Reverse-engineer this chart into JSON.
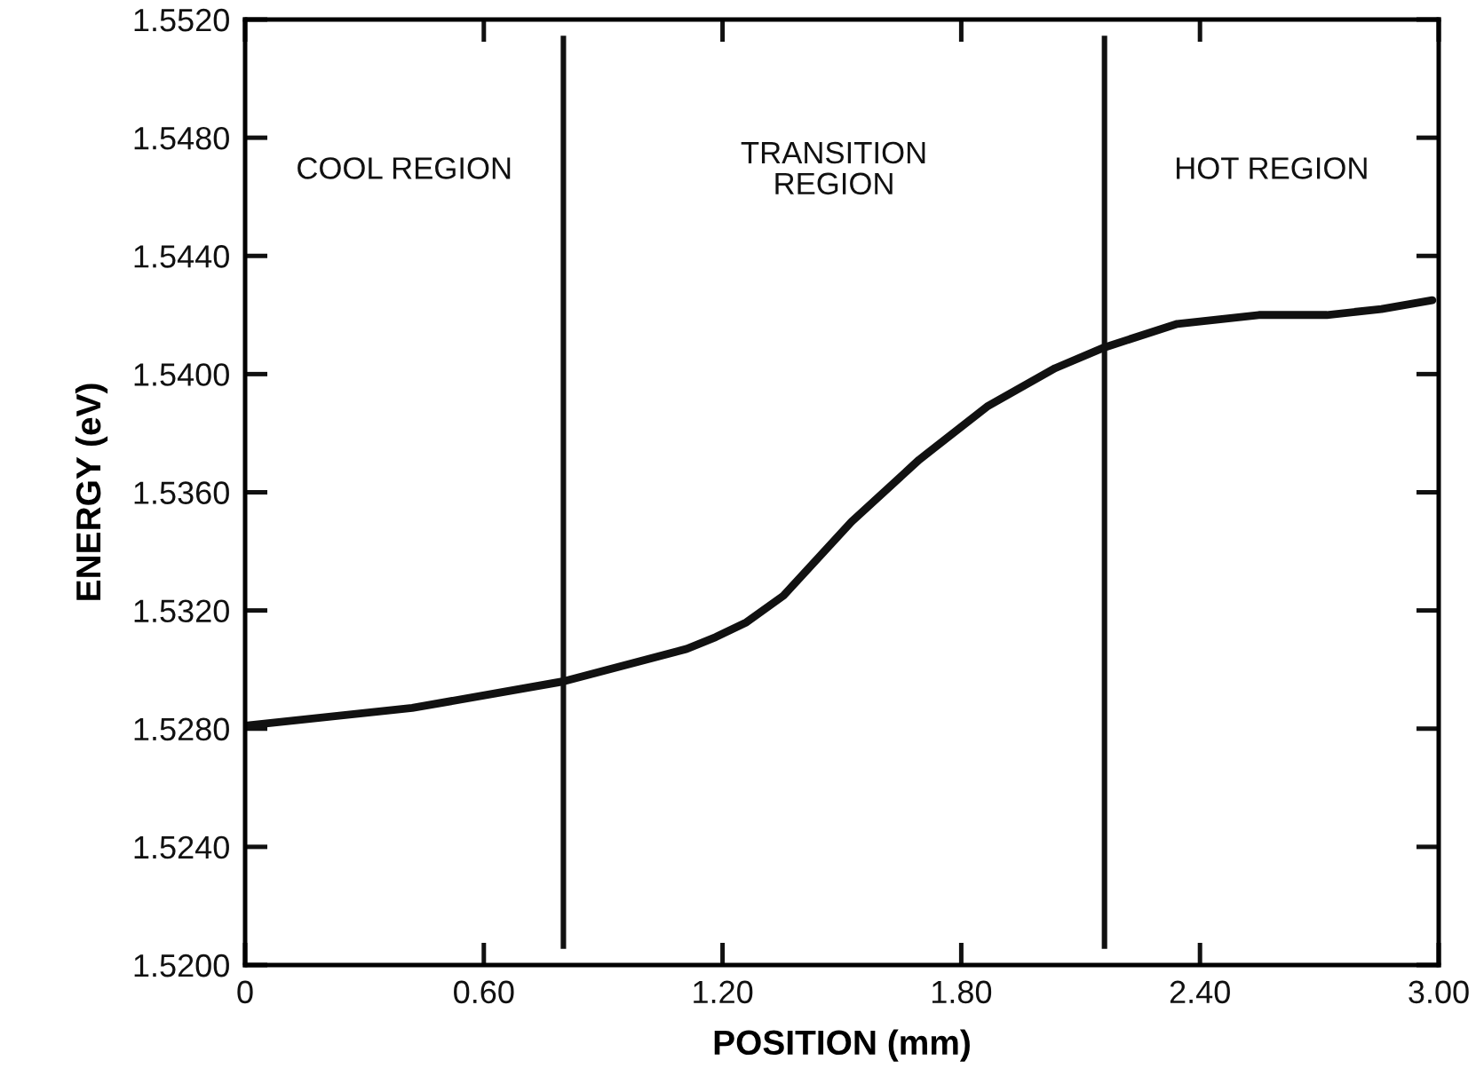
{
  "chart_data": {
    "type": "line",
    "xlabel": "POSITION (mm)",
    "ylabel": "ENERGY (eV)",
    "x": [
      0,
      0.42,
      0.8,
      1.11,
      1.183,
      1.26,
      1.353,
      1.524,
      1.694,
      1.865,
      2.036,
      2.159,
      2.343,
      2.548,
      2.719,
      2.856,
      2.984
    ],
    "series": [
      {
        "color": "#111111",
        "values": [
          1.5281,
          1.5287,
          1.5296,
          1.5307,
          1.5311,
          1.5316,
          1.5325,
          1.535,
          1.5371,
          1.5389,
          1.5402,
          1.5409,
          1.5417,
          1.542,
          1.542,
          1.5422,
          1.5425
        ]
      }
    ],
    "xlim": [
      0,
      3.0
    ],
    "xticks": [
      0,
      {
        "value": 0.6,
        "label": "0.60"
      },
      {
        "value": 1.2,
        "label": "1.20"
      },
      {
        "value": 1.8,
        "label": "1.80"
      },
      {
        "value": 2.4,
        "label": "2.40"
      },
      {
        "value": 3.0,
        "label": "3.00"
      }
    ],
    "ylim": [
      1.52,
      1.552
    ],
    "yticks": [
      {
        "value": 1.52,
        "label": "1.5200"
      },
      {
        "value": 1.524,
        "label": "1.5240"
      },
      {
        "value": 1.528,
        "label": "1.5280"
      },
      {
        "value": 1.532,
        "label": "1.5320"
      },
      {
        "value": 1.536,
        "label": "1.5360"
      },
      {
        "value": 1.54,
        "label": "1.5400"
      },
      {
        "value": 1.544,
        "label": "1.5440"
      },
      {
        "value": 1.548,
        "label": "1.5480"
      },
      {
        "value": 1.552,
        "label": "1.5520"
      }
    ],
    "ref_lines": [
      {
        "axis": "x",
        "value": 0.8,
        "color": "#111111"
      },
      {
        "axis": "x",
        "value": 2.16,
        "color": "#111111"
      }
    ],
    "annotations": [
      "COOL REGION",
      "TRANSITION\nREGION",
      "HOT REGION"
    ],
    "grid": false,
    "legend": false,
    "marker": "none",
    "line_style": "solid"
  }
}
